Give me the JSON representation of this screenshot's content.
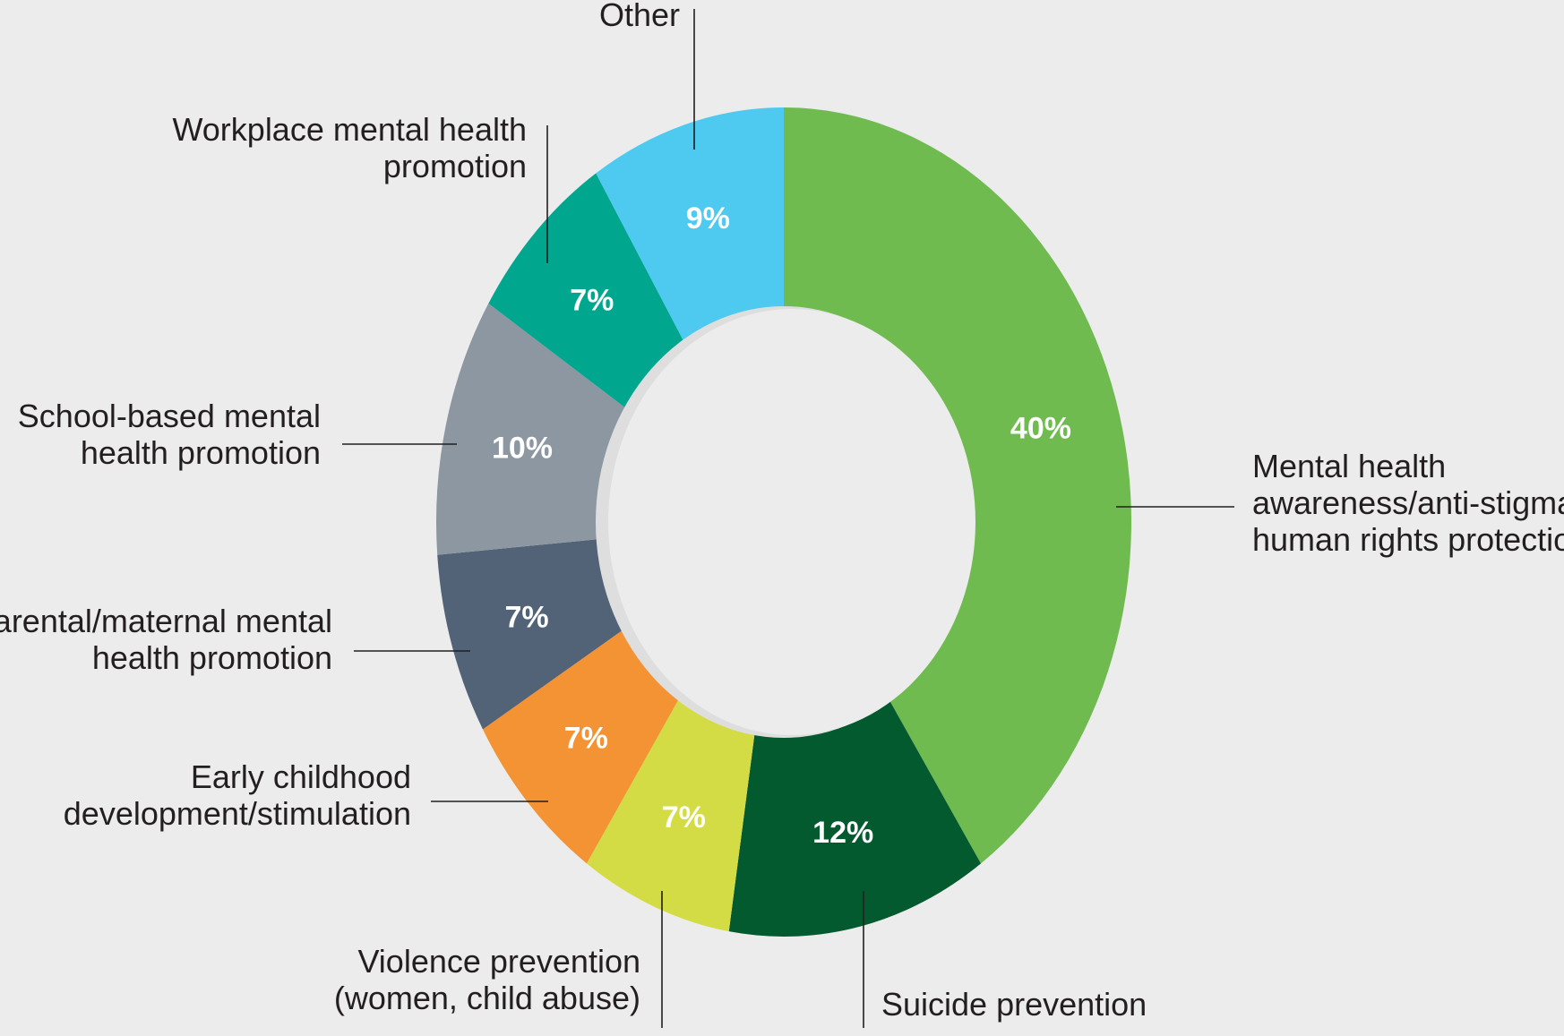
{
  "chart_data": {
    "type": "pie",
    "donut": true,
    "title": "",
    "categories": [
      "Mental health awareness/anti-stigma/ human rights protection",
      "Suicide prevention",
      "Violence prevention (women, child abuse)",
      "Early childhood development/stimulation",
      "Parental/maternal mental health promotion",
      "School-based mental health promotion",
      "Workplace mental health promotion",
      "Other"
    ],
    "values": [
      40,
      12,
      7,
      7,
      7,
      10,
      7,
      9
    ],
    "value_labels": [
      "40%",
      "12%",
      "7%",
      "7%",
      "7%",
      "10%",
      "7%",
      "9%"
    ],
    "label_lines": [
      [
        "Mental health",
        "awareness/anti-stigma/",
        "human rights protection"
      ],
      [
        "Suicide prevention"
      ],
      [
        "Violence prevention",
        "(women, child abuse)"
      ],
      [
        "Early childhood",
        "development/stimulation"
      ],
      [
        "Parental/maternal mental",
        "health promotion"
      ],
      [
        "School-based mental",
        "health promotion"
      ],
      [
        "Workplace mental health",
        "promotion"
      ],
      [
        "Other"
      ]
    ],
    "colors": [
      "#70bb50",
      "#035a2e",
      "#d3dc45",
      "#f49333",
      "#526378",
      "#8c97a2",
      "#00a78e",
      "#4ec9f0"
    ],
    "start": "12 o'clock",
    "direction": "clockwise",
    "legend": "none (direct labels with leader lines)"
  }
}
